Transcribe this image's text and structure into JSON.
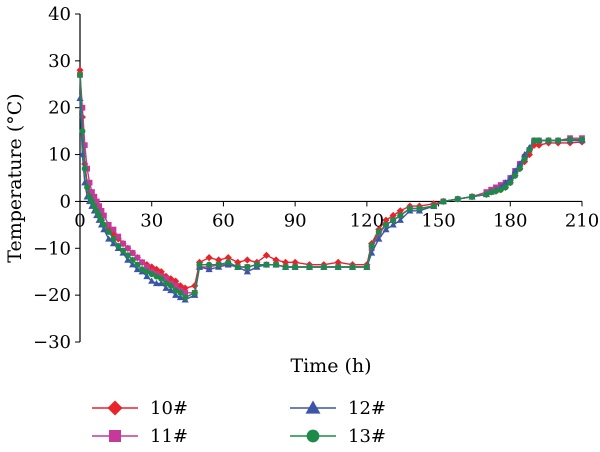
{
  "chart_data": {
    "type": "line",
    "xlabel": "Time (h)",
    "ylabel": "Temperature (°C)",
    "xlim": [
      0,
      210
    ],
    "ylim": [
      -30,
      40
    ],
    "xticks": [
      "0",
      "30",
      "60",
      "90",
      "120",
      "150",
      "180",
      "210"
    ],
    "yticks": [
      "40",
      "30",
      "20",
      "10",
      "0",
      "−10",
      "−20",
      "−30"
    ],
    "legend_placement": "bottom",
    "grid": false,
    "series": [
      {
        "name": "10#",
        "color": "#e8232a",
        "marker": "diamond",
        "x": [
          0,
          1,
          2,
          3,
          4,
          5,
          6,
          7,
          8,
          9,
          10,
          12,
          14,
          16,
          18,
          20,
          22,
          24,
          26,
          28,
          30,
          32,
          34,
          36,
          38,
          40,
          42,
          44,
          48,
          50,
          54,
          58,
          62,
          66,
          70,
          74,
          78,
          82,
          86,
          90,
          96,
          102,
          108,
          114,
          120,
          122,
          125,
          128,
          131,
          134,
          138,
          142,
          148,
          152,
          158,
          164,
          170,
          172,
          174,
          176,
          178,
          180,
          182,
          184,
          186,
          188,
          190,
          192,
          196,
          200,
          205,
          210
        ],
        "y": [
          28,
          18,
          8,
          4,
          2,
          0,
          -1,
          -2,
          -3,
          -4,
          -5,
          -6,
          -7,
          -8,
          -9,
          -10,
          -11,
          -12,
          -13,
          -13.5,
          -14,
          -14.5,
          -15,
          -16,
          -16.5,
          -17,
          -18,
          -18.5,
          -18,
          -13,
          -12,
          -12.5,
          -12,
          -13,
          -12.5,
          -13,
          -11.5,
          -12.5,
          -13,
          -13,
          -13.5,
          -13.5,
          -13,
          -13.5,
          -13.5,
          -9,
          -6,
          -4,
          -3,
          -2,
          -1,
          -1,
          -0.5,
          0,
          0.5,
          1,
          1.5,
          2,
          2.2,
          2.5,
          3,
          4,
          5.5,
          7,
          8.5,
          10,
          12,
          12,
          12.5,
          12.5,
          12.5,
          12.7
        ]
      },
      {
        "name": "11#",
        "color": "#c5399a",
        "marker": "square",
        "x": [
          0,
          1,
          2,
          3,
          4,
          5,
          6,
          7,
          8,
          9,
          10,
          12,
          14,
          16,
          18,
          20,
          22,
          24,
          26,
          28,
          30,
          32,
          34,
          36,
          38,
          40,
          42,
          44,
          48,
          50,
          54,
          58,
          62,
          66,
          70,
          74,
          78,
          82,
          86,
          90,
          96,
          102,
          108,
          114,
          120,
          122,
          125,
          128,
          131,
          134,
          138,
          142,
          148,
          152,
          158,
          164,
          170,
          172,
          174,
          176,
          178,
          180,
          182,
          184,
          186,
          188,
          190,
          192,
          196,
          200,
          205,
          210
        ],
        "y": [
          27,
          20,
          12,
          7,
          4,
          2,
          1,
          0,
          -1,
          -2,
          -3,
          -5,
          -6,
          -7.5,
          -9,
          -10,
          -11,
          -12,
          -13,
          -14,
          -15,
          -15.5,
          -16,
          -16.5,
          -17.5,
          -18,
          -19,
          -19.5,
          -19.5,
          -14,
          -14,
          -13.5,
          -13.5,
          -14,
          -14,
          -13.5,
          -13.5,
          -13.5,
          -14,
          -14,
          -14,
          -14,
          -14,
          -14,
          -14,
          -10,
          -7,
          -5,
          -4,
          -3,
          -1.5,
          -1.5,
          -1,
          0,
          0.5,
          1,
          2,
          2.5,
          3,
          3.5,
          4,
          5,
          6.5,
          8,
          9.5,
          11,
          13,
          13,
          13,
          13,
          13.5,
          13.5
        ]
      },
      {
        "name": "12#",
        "color": "#3d55a7",
        "marker": "triangle",
        "x": [
          0,
          1,
          2,
          3,
          4,
          5,
          6,
          7,
          8,
          9,
          10,
          12,
          14,
          16,
          18,
          20,
          22,
          24,
          26,
          28,
          30,
          32,
          34,
          36,
          38,
          40,
          42,
          44,
          48,
          50,
          54,
          58,
          62,
          66,
          70,
          74,
          78,
          82,
          86,
          90,
          96,
          102,
          108,
          114,
          120,
          122,
          125,
          128,
          131,
          134,
          138,
          142,
          148,
          152,
          158,
          164,
          170,
          172,
          174,
          176,
          178,
          180,
          182,
          184,
          186,
          188,
          190,
          192,
          196,
          200,
          205,
          210
        ],
        "y": [
          22,
          10,
          4,
          1,
          0,
          -1,
          -2,
          -3,
          -4,
          -5,
          -6,
          -8,
          -9,
          -10,
          -11,
          -12.5,
          -13.5,
          -14.5,
          -15,
          -16,
          -17,
          -17.5,
          -17.5,
          -18.5,
          -19,
          -20,
          -20.5,
          -21,
          -20,
          -14,
          -14.5,
          -14,
          -13.5,
          -14,
          -15,
          -14,
          -13.5,
          -13.5,
          -14,
          -14,
          -14,
          -14,
          -14,
          -14,
          -14,
          -11,
          -8,
          -6,
          -5,
          -4,
          -2,
          -2,
          -1,
          0,
          0.5,
          1,
          1.5,
          2,
          2.5,
          3,
          4,
          5,
          6.5,
          8,
          10,
          11.5,
          13,
          13,
          13,
          13,
          13,
          13
        ]
      },
      {
        "name": "13#",
        "color": "#1e8a4a",
        "marker": "circle",
        "x": [
          0,
          1,
          2,
          3,
          4,
          5,
          6,
          7,
          8,
          9,
          10,
          12,
          14,
          16,
          18,
          20,
          22,
          24,
          26,
          28,
          30,
          32,
          34,
          36,
          38,
          40,
          42,
          44,
          48,
          50,
          54,
          58,
          62,
          66,
          70,
          74,
          78,
          82,
          86,
          90,
          96,
          102,
          108,
          114,
          120,
          122,
          125,
          128,
          131,
          134,
          138,
          142,
          148,
          152,
          158,
          164,
          170,
          172,
          174,
          176,
          178,
          180,
          182,
          184,
          186,
          188,
          190,
          192,
          196,
          200,
          205,
          210
        ],
        "y": [
          27,
          15,
          7,
          3,
          1,
          0,
          -1,
          -2,
          -3,
          -4,
          -5,
          -6.5,
          -8,
          -9.5,
          -10.5,
          -11.5,
          -12.5,
          -13.5,
          -14.5,
          -15,
          -15.5,
          -16,
          -16.5,
          -17.5,
          -18,
          -19,
          -19.5,
          -20.5,
          -19.5,
          -13.5,
          -13.5,
          -13.5,
          -13,
          -14,
          -14,
          -13.5,
          -13.5,
          -13.5,
          -14,
          -14,
          -14,
          -14,
          -14,
          -14,
          -14,
          -9.5,
          -6.5,
          -5,
          -4,
          -3,
          -1.5,
          -1.5,
          -1,
          0,
          0.5,
          1,
          1.5,
          2,
          2.2,
          2.5,
          3,
          4,
          5.5,
          7,
          9,
          11,
          13,
          13,
          13,
          13,
          13.2,
          13.2
        ]
      }
    ]
  }
}
